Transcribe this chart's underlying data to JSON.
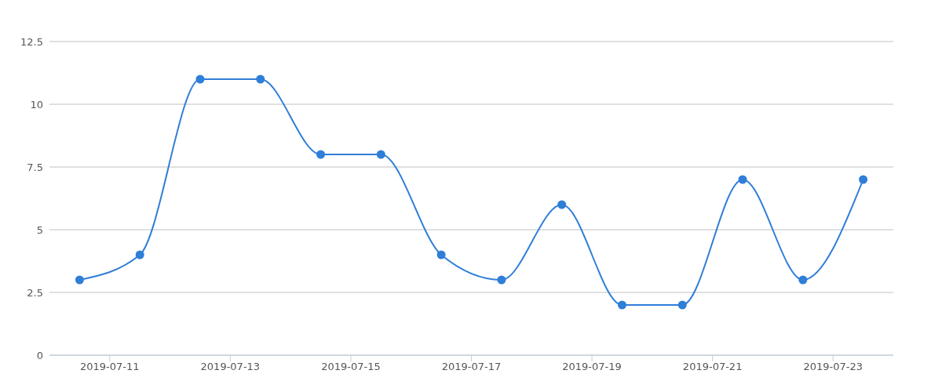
{
  "chart_data": {
    "type": "line",
    "x": [
      "2019-07-10T12:00",
      "2019-07-11T12:00",
      "2019-07-12T12:00",
      "2019-07-13T12:00",
      "2019-07-14T12:00",
      "2019-07-15T12:00",
      "2019-07-16T12:00",
      "2019-07-17T12:00",
      "2019-07-18T12:00",
      "2019-07-19T12:00",
      "2019-07-20T12:00",
      "2019-07-21T12:00",
      "2019-07-22T12:00",
      "2019-07-23T12:00"
    ],
    "series": [
      {
        "color": "#2f7ed8",
        "values": [
          3,
          4,
          11,
          11,
          8,
          8,
          4,
          3,
          6,
          2,
          2,
          7,
          3,
          7
        ]
      }
    ],
    "xlim": [
      "2019-07-10",
      "2019-07-24"
    ],
    "xticks": [
      "2019-07-11",
      "2019-07-13",
      "2019-07-15",
      "2019-07-17",
      "2019-07-19",
      "2019-07-21",
      "2019-07-23"
    ],
    "ylim": [
      0,
      12.5
    ],
    "yticks": [
      0,
      2.5,
      5,
      7.5,
      10,
      12.5
    ],
    "grid": "y",
    "legend": false,
    "marker": "circle",
    "line_style": "solid"
  }
}
